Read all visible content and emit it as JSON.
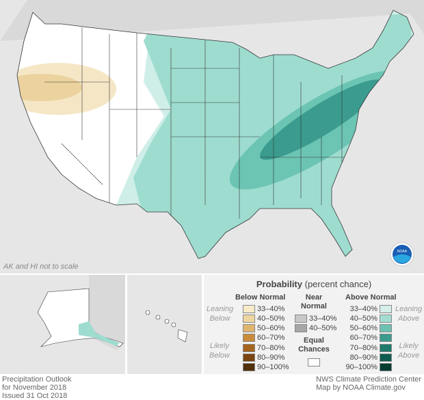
{
  "map": {
    "note": "AK and HI not to scale",
    "logo": "NOAA",
    "colors": {
      "background": "#e6e6e6",
      "equal_chances": "#ffffff",
      "lean_above": "#cfeee8",
      "above_40_50": "#9edcd0",
      "above_50_60": "#6cc4b3",
      "above_60_70": "#3a9b8e",
      "below_33_40": "#f5e7c6",
      "below_40_50": "#ebd29e"
    }
  },
  "legend": {
    "title": "Probability",
    "title_suffix": "(percent chance)",
    "below": {
      "heading": "Below Normal",
      "lean_label": [
        "Leaning",
        "Below"
      ],
      "likely_label": [
        "Likely",
        "Below"
      ],
      "items": [
        {
          "label": "33–40%",
          "color": "#f8ecc9"
        },
        {
          "label": "40–50%",
          "color": "#eed6a0"
        },
        {
          "label": "50–60%",
          "color": "#dfb56e"
        },
        {
          "label": "60–70%",
          "color": "#c98b3a"
        },
        {
          "label": "70–80%",
          "color": "#a5651d"
        },
        {
          "label": "80–90%",
          "color": "#7a4510"
        },
        {
          "label": "90–100%",
          "color": "#52300a"
        }
      ]
    },
    "near": {
      "heading": [
        "Near",
        "Normal"
      ],
      "items": [
        {
          "label": "33–40%",
          "color": "#c8c8c8"
        },
        {
          "label": "40–50%",
          "color": "#a6a6a6"
        }
      ]
    },
    "equal": {
      "heading": [
        "Equal",
        "Chances"
      ],
      "color": "#ffffff"
    },
    "above": {
      "heading": "Above Normal",
      "lean_label": [
        "Leaning",
        "Above"
      ],
      "likely_label": [
        "Likely",
        "Above"
      ],
      "items": [
        {
          "label": "33–40%",
          "color": "#d4efea"
        },
        {
          "label": "40–50%",
          "color": "#a3ddd2"
        },
        {
          "label": "50–60%",
          "color": "#6cc2b2"
        },
        {
          "label": "60–70%",
          "color": "#3a9b8e"
        },
        {
          "label": "70–80%",
          "color": "#1f7b6e"
        },
        {
          "label": "80–90%",
          "color": "#0d5c50"
        },
        {
          "label": "90–100%",
          "color": "#053d33"
        }
      ]
    }
  },
  "footer": {
    "left": [
      "Precipitation Outlook",
      "for November 2018",
      "Issued 31 Oct 2018"
    ],
    "right": [
      "NWS Climate Prediction Center",
      "Map by NOAA Climate.gov"
    ]
  }
}
